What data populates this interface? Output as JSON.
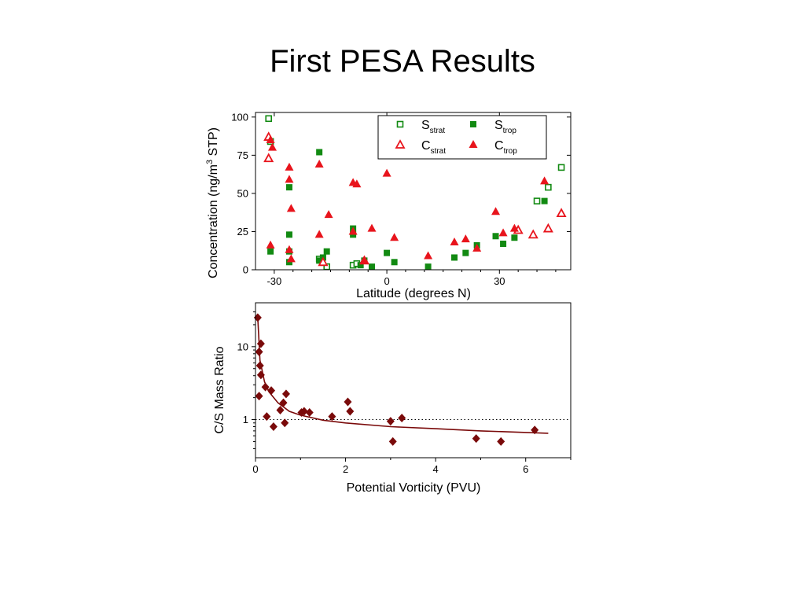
{
  "slide": {
    "title": "First PESA Results"
  },
  "colors": {
    "s_green": "#128a12",
    "c_red": "#e8141c",
    "ratio_red": "#7a0a0a",
    "axis": "#000000"
  },
  "chart_data": [
    {
      "type": "scatter",
      "ylabel_main": "Concentration (ng/m",
      "ylabel_sup": "3",
      "ylabel_tail": " STP)",
      "xlabel": "Latitude (degrees N)",
      "xlim": [
        -35,
        49
      ],
      "ylim": [
        0,
        103
      ],
      "xticks": [
        -30,
        0,
        30
      ],
      "yticks": [
        0,
        25,
        50,
        75,
        100
      ],
      "grid": false,
      "legend_position": "top-right",
      "series": [
        {
          "name": "S",
          "sub": "strat",
          "marker": "open-square",
          "color": "#128a12",
          "points": [
            [
              -31.5,
              99
            ],
            [
              -31,
              84
            ],
            [
              -18,
              7
            ],
            [
              -16,
              2
            ],
            [
              -9,
              3
            ],
            [
              -8,
              4
            ],
            [
              40,
              45
            ],
            [
              43,
              54
            ],
            [
              46.5,
              67
            ]
          ]
        },
        {
          "name": "S",
          "sub": "trop",
          "marker": "filled-square",
          "color": "#128a12",
          "points": [
            [
              -31,
              12
            ],
            [
              -26,
              23
            ],
            [
              -26,
              54
            ],
            [
              -26,
              12
            ],
            [
              -26,
              5
            ],
            [
              -18,
              77
            ],
            [
              -18,
              6
            ],
            [
              -17,
              8
            ],
            [
              -16,
              12
            ],
            [
              -9,
              27
            ],
            [
              -9,
              23
            ],
            [
              -7,
              3
            ],
            [
              -6,
              6
            ],
            [
              -4,
              2
            ],
            [
              0,
              11
            ],
            [
              2,
              5
            ],
            [
              11,
              2
            ],
            [
              18,
              8
            ],
            [
              21,
              11
            ],
            [
              24,
              16
            ],
            [
              29,
              22
            ],
            [
              31,
              17
            ],
            [
              34,
              21
            ],
            [
              42,
              45
            ]
          ]
        },
        {
          "name": "C",
          "sub": "strat",
          "marker": "open-triangle",
          "color": "#e8141c",
          "points": [
            [
              -31.5,
              87
            ],
            [
              -31.5,
              73
            ],
            [
              -17,
              5
            ],
            [
              -6,
              6
            ],
            [
              35,
              26
            ],
            [
              39,
              23
            ],
            [
              43,
              27
            ],
            [
              46.5,
              37
            ]
          ]
        },
        {
          "name": "C",
          "sub": "trop",
          "marker": "filled-triangle",
          "color": "#e8141c",
          "points": [
            [
              -31,
              85
            ],
            [
              -30.5,
              80
            ],
            [
              -31,
              16
            ],
            [
              -26,
              67
            ],
            [
              -26,
              59
            ],
            [
              -25.5,
              40
            ],
            [
              -26,
              13
            ],
            [
              -25.5,
              7
            ],
            [
              -18,
              69
            ],
            [
              -18,
              23
            ],
            [
              -15.5,
              36
            ],
            [
              -9,
              57
            ],
            [
              -8,
              56
            ],
            [
              -9,
              25
            ],
            [
              -6,
              6
            ],
            [
              -4,
              27
            ],
            [
              0,
              63
            ],
            [
              2,
              21
            ],
            [
              11,
              9
            ],
            [
              18,
              18
            ],
            [
              21,
              20
            ],
            [
              24,
              14
            ],
            [
              29,
              38
            ],
            [
              31,
              24
            ],
            [
              34,
              27
            ],
            [
              42,
              58
            ]
          ]
        }
      ]
    },
    {
      "type": "scatter",
      "ylabel": "C/S Mass Ratio",
      "xlabel": "Potential Vorticity (PVU)",
      "xlim": [
        0,
        7
      ],
      "ylim": [
        0.3,
        40
      ],
      "yscale": "log",
      "xticks": [
        0,
        2,
        4,
        6
      ],
      "yticks": [
        1,
        10
      ],
      "reference_line": 1,
      "grid": false,
      "series": [
        {
          "marker": "filled-diamond",
          "color": "#7a0a0a",
          "points": [
            [
              0.05,
              25
            ],
            [
              0.08,
              8.5
            ],
            [
              0.12,
              11
            ],
            [
              0.1,
              5.5
            ],
            [
              0.12,
              4.1
            ],
            [
              0.08,
              2.1
            ],
            [
              0.22,
              2.8
            ],
            [
              0.35,
              2.5
            ],
            [
              0.25,
              1.1
            ],
            [
              0.4,
              0.8
            ],
            [
              0.55,
              1.35
            ],
            [
              0.62,
              1.7
            ],
            [
              0.68,
              2.25
            ],
            [
              0.65,
              0.9
            ],
            [
              1.02,
              1.25
            ],
            [
              1.08,
              1.3
            ],
            [
              1.2,
              1.25
            ],
            [
              1.7,
              1.1
            ],
            [
              2.05,
              1.75
            ],
            [
              2.1,
              1.3
            ],
            [
              3.0,
              0.95
            ],
            [
              3.05,
              0.5
            ],
            [
              3.25,
              1.05
            ],
            [
              4.9,
              0.55
            ],
            [
              5.45,
              0.5
            ],
            [
              6.2,
              0.72
            ]
          ]
        },
        {
          "type": "line",
          "color": "#7a0a0a",
          "points": [
            [
              0.05,
              25
            ],
            [
              0.1,
              6.5
            ],
            [
              0.2,
              3.3
            ],
            [
              0.3,
              2.4
            ],
            [
              0.5,
              1.7
            ],
            [
              0.75,
              1.3
            ],
            [
              1,
              1.15
            ],
            [
              1.5,
              0.98
            ],
            [
              2,
              0.9
            ],
            [
              3,
              0.8
            ],
            [
              4,
              0.75
            ],
            [
              5,
              0.7
            ],
            [
              6.5,
              0.65
            ]
          ]
        }
      ]
    }
  ]
}
